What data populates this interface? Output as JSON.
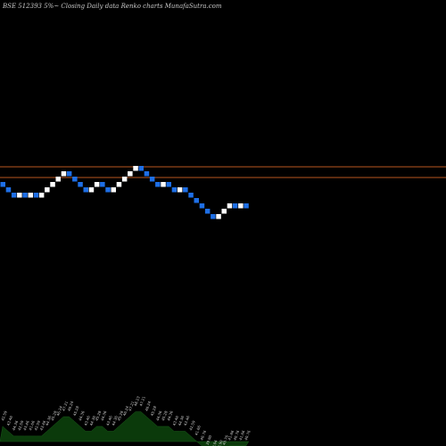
{
  "title": "BSE 512393 5%~  Closing Daily data  Renko  charts MunafaSutra.com",
  "colors": {
    "background": "#000000",
    "up_brick": "#ffffff",
    "down_brick": "#1e6fe6",
    "level_lines": "#b8561f",
    "volume_area": "#0b3a0b",
    "volume_labels": "#cfcfcf"
  },
  "chart_data": {
    "type": "renko",
    "brick_direction": [
      "down",
      "down",
      "down",
      "up",
      "down",
      "up",
      "down",
      "up",
      "up",
      "up",
      "up",
      "up",
      "down",
      "down",
      "down",
      "down",
      "up",
      "up",
      "down",
      "down",
      "up",
      "up",
      "up",
      "up",
      "up",
      "down",
      "down",
      "down",
      "down",
      "up",
      "down",
      "down",
      "up",
      "down",
      "down",
      "down",
      "down",
      "down",
      "down",
      "up",
      "up",
      "up",
      "down",
      "up",
      "down"
    ],
    "reference_levels": [
      "upper",
      "lower"
    ],
    "volume_labels": [
      "42.59",
      "43.46",
      "44.36",
      "42.59",
      "43.46",
      "41.66",
      "42.59",
      "43.46",
      "44.36",
      "45.28",
      "46.24",
      "47.21",
      "46.24",
      "45.28",
      "44.36",
      "43.46",
      "44.36",
      "45.28",
      "44.36",
      "43.46",
      "44.36",
      "45.28",
      "46.24",
      "47.21",
      "48.23",
      "47.21",
      "46.24",
      "45.28",
      "44.36",
      "45.28",
      "44.36",
      "43.46",
      "44.36",
      "43.46",
      "42.59",
      "41.66",
      "40.76",
      "39.90",
      "39.04",
      "39.90",
      "40.76",
      "41.66",
      "40.76",
      "41.66",
      "40.76"
    ]
  }
}
